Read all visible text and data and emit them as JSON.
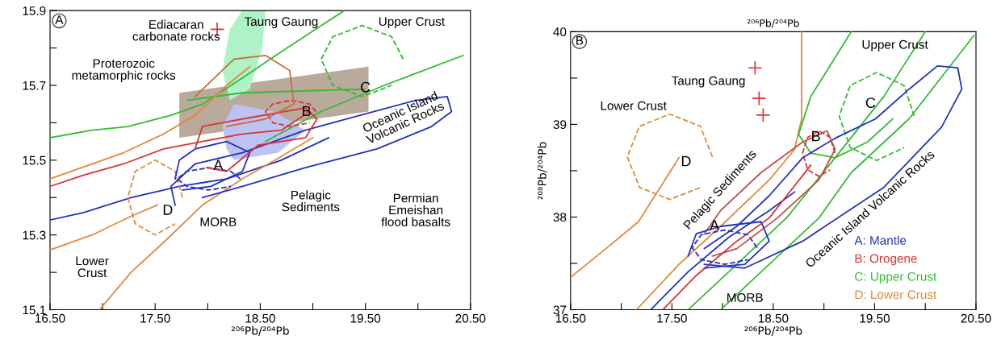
{
  "chart_data": [
    {
      "type": "line",
      "title": "A",
      "xlabel": "²⁰⁶Pb/²⁰⁴Pb",
      "xlim": [
        16.5,
        20.5
      ],
      "ylim": [
        15.1,
        15.9
      ],
      "xticks": [
        {
          "value": 16.5,
          "label": "16.50"
        },
        {
          "value": 17.0,
          "label": null
        },
        {
          "value": 17.5,
          "label": "17.50"
        },
        {
          "value": 18.0,
          "label": null
        },
        {
          "value": 18.5,
          "label": "18.50"
        },
        {
          "value": 19.0,
          "label": null
        },
        {
          "value": 19.5,
          "label": "19.50"
        },
        {
          "value": 20.0,
          "label": null
        },
        {
          "value": 20.5,
          "label": "20.50"
        }
      ],
      "yticks": [
        15.9,
        {
          "value": 15.8,
          "label": null
        },
        15.7,
        {
          "value": 15.6,
          "label": null
        },
        15.5,
        {
          "value": 15.4,
          "label": null
        },
        15.3,
        {
          "value": 15.2,
          "label": null
        },
        15.1
      ],
      "grid": false,
      "legend": false,
      "series": [
        {
          "type": "area",
          "color": "#b9aa9c",
          "x": [
            17.73,
            19.53,
            19.53,
            17.73
          ],
          "values": [
            15.68,
            15.75,
            15.63,
            15.56
          ]
        },
        {
          "type": "area",
          "color": "#aef2c6",
          "x": [
            18.21,
            18.33,
            18.55,
            18.52,
            18.4,
            18.21,
            18.14
          ],
          "values": [
            15.85,
            15.9,
            15.9,
            15.8,
            15.69,
            15.66,
            15.74
          ]
        },
        {
          "type": "area",
          "color": "#bcc3f2",
          "x": [
            18.14,
            18.25,
            18.63,
            18.93,
            18.67,
            18.25,
            18.18
          ],
          "values": [
            15.59,
            15.65,
            15.63,
            15.58,
            15.52,
            15.5,
            15.53
          ]
        },
        {
          "color": "#33bb33",
          "x": [
            16.5,
            16.9,
            17.24,
            17.65,
            17.95,
            18.33,
            18.7,
            19.08,
            19.3
          ],
          "values": [
            15.56,
            15.58,
            15.59,
            15.62,
            15.65,
            15.72,
            15.79,
            15.86,
            15.9
          ]
        },
        {
          "color": "#33bb33",
          "x": [
            17.8,
            18.33,
            19.49
          ],
          "values": [
            15.66,
            15.68,
            15.69
          ]
        },
        {
          "color": "#33bb33",
          "x": [
            18.55,
            19.08,
            19.68,
            20.43
          ],
          "values": [
            15.55,
            15.63,
            15.7,
            15.78
          ]
        },
        {
          "color": "#dd3333",
          "x": [
            16.5,
            16.82,
            17.2,
            17.58,
            17.95,
            18.33,
            18.7,
            18.97
          ],
          "values": [
            15.43,
            15.46,
            15.49,
            15.53,
            15.55,
            15.57,
            15.58,
            15.63
          ]
        },
        {
          "color": "#e08a3c",
          "x": [
            16.5,
            17.2,
            17.58,
            17.88,
            18.18,
            18.4
          ],
          "values": [
            15.45,
            15.52,
            15.57,
            15.62,
            15.7,
            15.75
          ]
        },
        {
          "color": "#2233bb",
          "x": [
            16.5,
            16.82,
            17.27,
            17.73,
            18.18,
            18.7,
            19.15
          ],
          "values": [
            15.34,
            15.36,
            15.4,
            15.43,
            15.45,
            15.5,
            15.56
          ]
        },
        {
          "color": "#e08a3c",
          "x": [
            16.97,
            17.27,
            17.58,
            17.95,
            18.33,
            18.7,
            19.0
          ],
          "values": [
            15.1,
            15.2,
            15.28,
            15.38,
            15.45,
            15.51,
            15.56
          ]
        },
        {
          "color": "#e08a3c",
          "x": [
            16.5,
            16.9,
            17.27,
            17.52
          ],
          "values": [
            15.26,
            15.3,
            15.35,
            15.38
          ]
        },
        {
          "color": "#e08a3c",
          "line_style": "dashed",
          "x": [
            17.76,
            17.69,
            17.5,
            17.31,
            17.24,
            17.31,
            17.5,
            17.69
          ],
          "values": [
            15.4,
            15.47,
            15.5,
            15.47,
            15.4,
            15.33,
            15.3,
            15.33
          ]
        },
        {
          "color": "#33bb33",
          "line_style": "dashed",
          "x": [
            19.86,
            19.75,
            19.47,
            19.19,
            19.08,
            19.19,
            19.47,
            19.75
          ],
          "values": [
            15.77,
            15.83,
            15.86,
            15.83,
            15.77,
            15.7,
            15.67,
            15.7
          ]
        },
        {
          "color": "#dd3333",
          "line_style": "dashed",
          "x": [
            19.03,
            18.97,
            18.79,
            18.62,
            18.55,
            18.62,
            18.79,
            18.97
          ],
          "values": [
            15.63,
            15.65,
            15.66,
            15.65,
            15.63,
            15.6,
            15.59,
            15.6
          ]
        },
        {
          "color": "#2233bb",
          "line_style": "dashed",
          "x": [
            18.31,
            18.22,
            18.01,
            17.8,
            17.71,
            17.8,
            18.01,
            18.22
          ],
          "values": [
            15.45,
            15.47,
            15.48,
            15.47,
            15.45,
            15.43,
            15.42,
            15.43
          ]
        },
        {
          "color": "#2233bb",
          "x": [
            17.69,
            17.73,
            17.88,
            18.18,
            18.4,
            18.33,
            18.03,
            17.76
          ],
          "values": [
            15.45,
            15.5,
            15.53,
            15.55,
            15.52,
            15.47,
            15.43,
            15.42
          ]
        },
        {
          "color": "#2233bb",
          "x": [
            17.69,
            17.65,
            17.88,
            18.33,
            18.93,
            19.45,
            19.98,
            20.28,
            20.32,
            20.13,
            19.61,
            18.93,
            18.33,
            17.95
          ],
          "values": [
            15.38,
            15.43,
            15.49,
            15.52,
            15.58,
            15.62,
            15.66,
            15.67,
            15.63,
            15.59,
            15.53,
            15.48,
            15.43,
            15.4
          ]
        },
        {
          "color": "#dd3333",
          "x": [
            17.88,
            17.95,
            18.33,
            18.93,
            19.04,
            18.93,
            18.48,
            18.18,
            17.99
          ],
          "values": [
            15.53,
            15.59,
            15.61,
            15.64,
            15.61,
            15.56,
            15.54,
            15.47,
            15.48
          ]
        },
        {
          "color": "#c0703a",
          "x": [
            17.88,
            18.25,
            18.55,
            18.78,
            18.82,
            18.55,
            18.18
          ],
          "values": [
            15.67,
            15.77,
            15.78,
            15.74,
            15.65,
            15.61,
            15.59
          ]
        },
        {
          "type": "scatter",
          "marker": "cross",
          "color": "#dd3333",
          "x": [
            18.09
          ],
          "values": [
            15.85
          ]
        }
      ],
      "annotations": [
        "Ediacaran\ncarbonate rocks",
        "Taung Gaung",
        "Upper Crust",
        "Proterozoic\nmetamorphic rocks",
        "Oceanic Island\nVolcanic Rocks",
        "Pelagic\nSediments",
        "Permian\nEmeishan\nflood basalts",
        "MORB",
        "Lower\nCrust",
        "A",
        "B",
        "C",
        "D"
      ]
    },
    {
      "type": "line",
      "title": "B",
      "xlabel": "²⁰⁶Pb/²⁰⁴Pb",
      "x2label": "²⁰⁶Pb/²⁰⁴Pb",
      "ylabel": "²⁰⁸Pb/²⁰⁴Pb",
      "xlim": [
        16.5,
        20.5
      ],
      "ylim": [
        37,
        40
      ],
      "xticks": [
        {
          "value": 16.5,
          "label": "16.50"
        },
        {
          "value": 17.0,
          "label": null
        },
        {
          "value": 17.5,
          "label": "17.50"
        },
        {
          "value": 18.0,
          "label": null
        },
        {
          "value": 18.5,
          "label": "18.50"
        },
        {
          "value": 19.0,
          "label": null
        },
        {
          "value": 19.5,
          "label": "19.50"
        },
        {
          "value": 20.0,
          "label": null
        },
        {
          "value": 20.5,
          "label": "20.50"
        }
      ],
      "yticks": [
        40,
        {
          "value": 39.5,
          "label": null
        },
        39,
        {
          "value": 38.5,
          "label": null
        },
        38,
        {
          "value": 37.5,
          "label": null
        },
        37
      ],
      "grid": false,
      "legend": "bottom right",
      "series": [
        {
          "name": "A: Mantle",
          "color": "#2233bb",
          "x": [
            17.29,
            17.66,
            18.06,
            18.46,
            18.71
          ],
          "values": [
            37.0,
            37.41,
            37.78,
            38.07,
            38.27
          ]
        },
        {
          "name": "B: Orogene",
          "color": "#dd3333",
          "x": [
            17.41,
            17.74,
            18.14,
            18.46,
            18.87
          ],
          "values": [
            37.0,
            37.37,
            37.74,
            37.99,
            38.56
          ]
        },
        {
          "name": "C: Upper Crust",
          "color": "#33bb33",
          "x": [
            17.66,
            18.14,
            18.63,
            19.11,
            19.59,
            20.0
          ],
          "values": [
            37.0,
            37.49,
            37.99,
            38.64,
            39.3,
            40.0
          ]
        },
        {
          "name": "D: Lower Crust",
          "color": "#e08a3c",
          "x": [
            16.5,
            16.85,
            17.17,
            17.57
          ],
          "values": [
            37.35,
            37.66,
            37.95,
            38.64
          ]
        },
        {
          "color": "#e08a3c",
          "x": [
            17.15,
            17.57,
            17.98,
            18.46,
            18.71,
            18.78,
            18.78
          ],
          "values": [
            37.0,
            37.49,
            37.9,
            38.4,
            38.73,
            39.06,
            40.0
          ]
        },
        {
          "color": "#33bb33",
          "x": [
            17.98,
            18.46,
            18.95,
            19.27,
            19.84,
            20.48
          ],
          "values": [
            37.0,
            37.49,
            37.99,
            38.48,
            39.06,
            39.96
          ]
        },
        {
          "color": "#33bb33",
          "x": [
            19.27,
            18.87,
            18.75,
            18.87,
            19.11,
            19.43,
            19.68
          ],
          "values": [
            40.0,
            39.3,
            38.89,
            38.69,
            38.64,
            38.81,
            39.06
          ]
        },
        {
          "color": "#e08a3c",
          "line_style": "dashed",
          "x": [
            17.9,
            17.78,
            17.48,
            17.18,
            17.06,
            17.18,
            17.48,
            17.78
          ],
          "values": [
            38.65,
            38.98,
            39.11,
            38.98,
            38.65,
            38.32,
            38.19,
            38.32
          ]
        },
        {
          "color": "#33bb33",
          "line_style": "dashed",
          "x": [
            19.89,
            19.79,
            19.52,
            19.26,
            19.15,
            19.26,
            19.52,
            19.79
          ],
          "values": [
            39.09,
            39.42,
            39.56,
            39.42,
            39.09,
            38.75,
            38.61,
            38.75
          ]
        },
        {
          "color": "#dd3333",
          "line_style": "dashed",
          "x": [
            19.11,
            19.06,
            18.95,
            18.84,
            18.79,
            18.84,
            18.95,
            19.06
          ],
          "values": [
            38.69,
            38.86,
            38.93,
            38.86,
            38.69,
            38.51,
            38.44,
            38.51
          ]
        },
        {
          "color": "#2233bb",
          "line_style": "dashed",
          "x": [
            18.34,
            18.25,
            18.02,
            17.79,
            17.7,
            17.79,
            18.02,
            18.25
          ],
          "values": [
            37.67,
            37.81,
            37.86,
            37.81,
            37.67,
            37.54,
            37.49,
            37.54
          ]
        },
        {
          "color": "#2233bb",
          "x": [
            17.82,
            18.14,
            18.46,
            18.79,
            19.11,
            19.51,
            19.84,
            20.12,
            20.32,
            20.36,
            20.16,
            19.59,
            18.79,
            18.22,
            17.82
          ],
          "values": [
            37.66,
            37.9,
            38.23,
            38.64,
            38.85,
            39.06,
            39.38,
            39.63,
            39.61,
            39.38,
            38.97,
            38.32,
            37.74,
            37.45,
            37.49
          ]
        },
        {
          "color": "#c0504a",
          "x": [
            17.82,
            17.98,
            18.38,
            18.79,
            19.03,
            19.11,
            18.95,
            18.54,
            18.14,
            17.9
          ],
          "values": [
            37.82,
            38.07,
            38.48,
            38.81,
            38.93,
            38.73,
            38.4,
            37.99,
            37.66,
            37.58
          ]
        },
        {
          "color": "#2233bb",
          "x": [
            17.66,
            17.74,
            17.98,
            18.38,
            18.46,
            18.22,
            17.82
          ],
          "values": [
            37.58,
            37.82,
            37.9,
            37.95,
            37.74,
            37.49,
            37.45
          ]
        },
        {
          "type": "scatter",
          "marker": "cross",
          "color": "#dd3333",
          "x": [
            18.32,
            18.36,
            18.4
          ],
          "values": [
            39.61,
            39.28,
            39.1
          ]
        }
      ],
      "annotations": [
        "Taung Gaung",
        "Lower Crust",
        "Pelagic Sediments",
        "Oceanic Island Volcanic Rocks",
        "MORB",
        "Upper Crust",
        "A",
        "B",
        "C",
        "D"
      ]
    }
  ]
}
